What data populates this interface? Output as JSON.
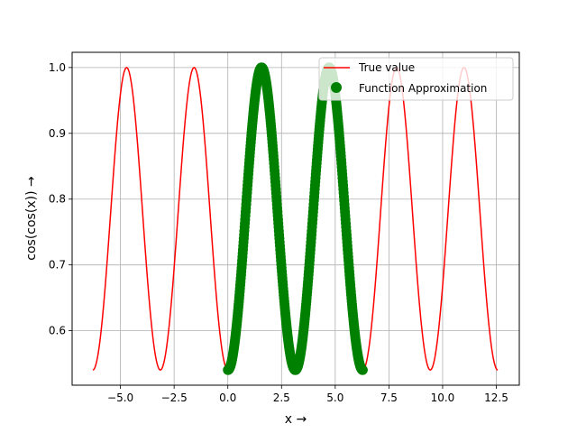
{
  "chart_data": {
    "type": "line",
    "title": "",
    "xlabel": "x →",
    "ylabel": "cos(cos(x)) →",
    "xlim": [
      -7.25,
      13.57
    ],
    "ylim": [
      0.5172,
      1.0231
    ],
    "xticks": [
      -5.0,
      -2.5,
      0.0,
      2.5,
      5.0,
      7.5,
      10.0,
      12.5
    ],
    "xtick_labels": [
      "−5.0",
      "−2.5",
      "0.0",
      "2.5",
      "5.0",
      "7.5",
      "10.0",
      "12.5"
    ],
    "yticks": [
      0.6,
      0.7,
      0.8,
      0.9,
      1.0
    ],
    "ytick_labels": [
      "0.6",
      "0.7",
      "0.8",
      "0.9",
      "1.0"
    ],
    "grid": true,
    "legend_position": "top-right",
    "series": [
      {
        "name": "True value",
        "kind": "line",
        "color": "#ff0000",
        "function": "cos(cos(x))",
        "x_range": [
          -6.2832,
          12.5664
        ],
        "points": [
          [
            -6.2832,
            0.5403
          ],
          [
            -5.4978,
            0.7602
          ],
          [
            -4.7124,
            1.0
          ],
          [
            -3.927,
            0.7602
          ],
          [
            -3.1416,
            0.5403
          ],
          [
            -2.3562,
            0.7602
          ],
          [
            -1.5708,
            1.0
          ],
          [
            -0.7854,
            0.7602
          ],
          [
            0.0,
            0.5403
          ],
          [
            0.7854,
            0.7602
          ],
          [
            1.5708,
            1.0
          ],
          [
            2.3562,
            0.7602
          ],
          [
            3.1416,
            0.5403
          ],
          [
            3.927,
            0.7602
          ],
          [
            4.7124,
            1.0
          ],
          [
            5.4978,
            0.7602
          ],
          [
            6.2832,
            0.5403
          ],
          [
            7.0686,
            0.7602
          ],
          [
            7.854,
            1.0
          ],
          [
            8.6394,
            0.7602
          ],
          [
            9.4248,
            0.5403
          ],
          [
            10.2102,
            0.7602
          ],
          [
            10.9956,
            1.0
          ],
          [
            11.781,
            0.7602
          ],
          [
            12.5664,
            0.5403
          ]
        ]
      },
      {
        "name": "Function Approximation",
        "kind": "scatter",
        "color": "#008000",
        "function": "cos(cos(x))",
        "x_range": [
          0.0,
          6.2832
        ],
        "points": [
          [
            0.0,
            0.5403
          ],
          [
            0.7854,
            0.7602
          ],
          [
            1.5708,
            1.0
          ],
          [
            2.3562,
            0.7602
          ],
          [
            3.1416,
            0.5403
          ],
          [
            3.927,
            0.7602
          ],
          [
            4.7124,
            1.0
          ],
          [
            5.4978,
            0.7602
          ],
          [
            6.2832,
            0.5403
          ]
        ]
      }
    ]
  }
}
